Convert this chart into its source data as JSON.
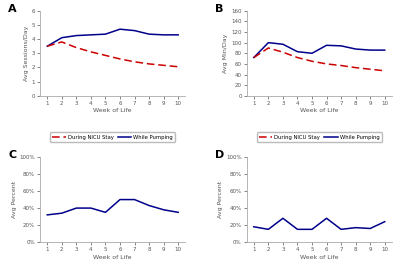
{
  "weeks": [
    1,
    2,
    3,
    4,
    5,
    6,
    7,
    8,
    9,
    10
  ],
  "A": {
    "title": "A",
    "ylabel": "Avg Sessions/Day",
    "xlabel": "Week of Life",
    "red": [
      3.5,
      3.8,
      3.4,
      3.1,
      2.85,
      2.6,
      2.4,
      2.25,
      2.15,
      2.05
    ],
    "blue": [
      3.5,
      4.1,
      4.25,
      4.3,
      4.35,
      4.7,
      4.6,
      4.35,
      4.3,
      4.3
    ],
    "ylim": [
      0,
      6
    ],
    "yticks": [
      0,
      1,
      2,
      3,
      4,
      5,
      6
    ]
  },
  "B": {
    "title": "B",
    "ylabel": "Avg Min/Day",
    "xlabel": "Week of Life",
    "red": [
      72,
      90,
      82,
      72,
      65,
      60,
      57,
      53,
      50,
      47
    ],
    "blue": [
      72,
      100,
      97,
      83,
      80,
      95,
      94,
      88,
      86,
      86
    ],
    "ylim": [
      0,
      160
    ],
    "yticks": [
      0,
      20,
      40,
      60,
      80,
      100,
      120,
      140,
      160
    ]
  },
  "C": {
    "title": "C",
    "ylabel": "Avg Percent",
    "xlabel": "Week of Life",
    "blue": [
      32,
      34,
      40,
      40,
      35,
      50,
      50,
      43,
      38,
      35
    ],
    "ylim": [
      0,
      100
    ],
    "yticks": [
      0,
      20,
      40,
      60,
      80,
      100
    ],
    "yticklabels": [
      "0%",
      "20%",
      "40%",
      "60%",
      "80%",
      "100%"
    ]
  },
  "D": {
    "title": "D",
    "ylabel": "Avg Percent",
    "xlabel": "Week of Life",
    "blue": [
      18,
      15,
      28,
      15,
      15,
      28,
      15,
      17,
      16,
      24
    ],
    "ylim": [
      0,
      100
    ],
    "yticks": [
      0,
      20,
      40,
      60,
      80,
      100
    ],
    "yticklabels": [
      "0%",
      "20%",
      "40%",
      "60%",
      "80%",
      "100%"
    ]
  },
  "legend": {
    "red_label": "During NICU Stay",
    "blue_label": "While Pumping"
  },
  "red_color": "#CC0000",
  "blue_color": "#00008B",
  "fig_bg": "#ffffff",
  "panel_bg": "#ffffff",
  "spine_color": "#aaaaaa",
  "tick_color": "#555555",
  "label_color": "#555555"
}
